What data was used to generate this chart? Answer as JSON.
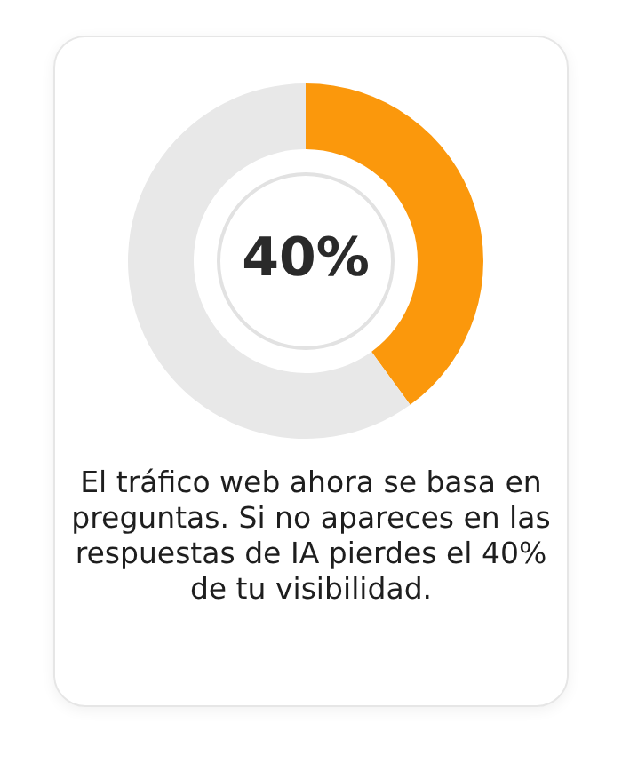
{
  "chart_data": {
    "type": "donut",
    "categories": [
      null,
      null
    ],
    "values": [
      40,
      60
    ],
    "colors": [
      "#fb980c",
      "#e8e8e8"
    ],
    "value_labels": [
      "40%",
      null
    ],
    "legend": false,
    "annotations": [
      "El tráfico web ahora se basa en preguntas. Si no apareces en las respuestas de IA pierdes el 40% de tu visibilidad."
    ]
  }
}
